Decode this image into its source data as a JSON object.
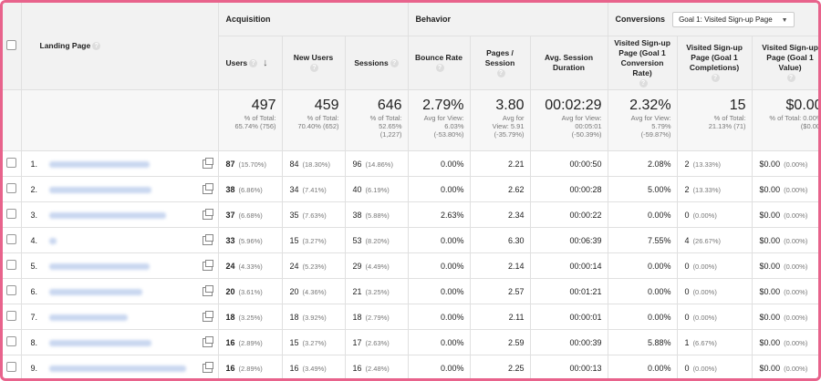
{
  "groups": {
    "acquisition": "Acquisition",
    "behavior": "Behavior",
    "conversions": "Conversions",
    "goal_select": "Goal 1: Visited Sign-up Page"
  },
  "columns": {
    "landing_page": "Landing Page",
    "users": "Users",
    "new_users": "New Users",
    "sessions": "Sessions",
    "bounce_rate": "Bounce Rate",
    "pages_session": "Pages / Session",
    "avg_duration": "Avg. Session Duration",
    "conv_rate": "Visited Sign-up Page (Goal 1 Conversion Rate)",
    "completions": "Visited Sign-up Page (Goal 1 Completions)",
    "value": "Visited Sign-up Page (Goal 1 Value)"
  },
  "totals": {
    "users": {
      "v": "497",
      "s1": "% of Total:",
      "s2": "65.74% (756)"
    },
    "new_users": {
      "v": "459",
      "s1": "% of Total:",
      "s2": "70.40% (652)"
    },
    "sessions": {
      "v": "646",
      "s1": "% of Total:",
      "s2": "52.65%",
      "s3": "(1,227)"
    },
    "bounce_rate": {
      "v": "2.79%",
      "s1": "Avg for View:",
      "s2": "6.03%",
      "s3": "(-53.80%)"
    },
    "pages_session": {
      "v": "3.80",
      "s1": "Avg for",
      "s2": "View: 5.91",
      "s3": "(-35.79%)"
    },
    "avg_duration": {
      "v": "00:02:29",
      "s1": "Avg for View:",
      "s2": "00:05:01",
      "s3": "(-50.39%)"
    },
    "conv_rate": {
      "v": "2.32%",
      "s1": "Avg for View:",
      "s2": "5.79%",
      "s3": "(-59.87%)"
    },
    "completions": {
      "v": "15",
      "s1": "% of Total:",
      "s2": "21.13% (71)"
    },
    "value": {
      "v": "$0.00",
      "s1": "% of Total: 0.00%",
      "s2": "($0.00)"
    }
  },
  "rows": [
    {
      "n": "1.",
      "users": "87",
      "users_p": "(15.70%)",
      "new": "84",
      "new_p": "(18.30%)",
      "sess": "96",
      "sess_p": "(14.86%)",
      "bounce": "0.00%",
      "pps": "2.21",
      "dur": "00:00:50",
      "conv": "2.08%",
      "comp": "2",
      "comp_p": "(13.33%)",
      "val": "$0.00",
      "val_p": "(0.00%)"
    },
    {
      "n": "2.",
      "users": "38",
      "users_p": "(6.86%)",
      "new": "34",
      "new_p": "(7.41%)",
      "sess": "40",
      "sess_p": "(6.19%)",
      "bounce": "0.00%",
      "pps": "2.62",
      "dur": "00:00:28",
      "conv": "5.00%",
      "comp": "2",
      "comp_p": "(13.33%)",
      "val": "$0.00",
      "val_p": "(0.00%)"
    },
    {
      "n": "3.",
      "users": "37",
      "users_p": "(6.68%)",
      "new": "35",
      "new_p": "(7.63%)",
      "sess": "38",
      "sess_p": "(5.88%)",
      "bounce": "2.63%",
      "pps": "2.34",
      "dur": "00:00:22",
      "conv": "0.00%",
      "comp": "0",
      "comp_p": "(0.00%)",
      "val": "$0.00",
      "val_p": "(0.00%)"
    },
    {
      "n": "4.",
      "users": "33",
      "users_p": "(5.96%)",
      "new": "15",
      "new_p": "(3.27%)",
      "sess": "53",
      "sess_p": "(8.20%)",
      "bounce": "0.00%",
      "pps": "6.30",
      "dur": "00:06:39",
      "conv": "7.55%",
      "comp": "4",
      "comp_p": "(26.67%)",
      "val": "$0.00",
      "val_p": "(0.00%)"
    },
    {
      "n": "5.",
      "users": "24",
      "users_p": "(4.33%)",
      "new": "24",
      "new_p": "(5.23%)",
      "sess": "29",
      "sess_p": "(4.49%)",
      "bounce": "0.00%",
      "pps": "2.14",
      "dur": "00:00:14",
      "conv": "0.00%",
      "comp": "0",
      "comp_p": "(0.00%)",
      "val": "$0.00",
      "val_p": "(0.00%)"
    },
    {
      "n": "6.",
      "users": "20",
      "users_p": "(3.61%)",
      "new": "20",
      "new_p": "(4.36%)",
      "sess": "21",
      "sess_p": "(3.25%)",
      "bounce": "0.00%",
      "pps": "2.57",
      "dur": "00:01:21",
      "conv": "0.00%",
      "comp": "0",
      "comp_p": "(0.00%)",
      "val": "$0.00",
      "val_p": "(0.00%)"
    },
    {
      "n": "7.",
      "users": "18",
      "users_p": "(3.25%)",
      "new": "18",
      "new_p": "(3.92%)",
      "sess": "18",
      "sess_p": "(2.79%)",
      "bounce": "0.00%",
      "pps": "2.11",
      "dur": "00:00:01",
      "conv": "0.00%",
      "comp": "0",
      "comp_p": "(0.00%)",
      "val": "$0.00",
      "val_p": "(0.00%)"
    },
    {
      "n": "8.",
      "users": "16",
      "users_p": "(2.89%)",
      "new": "15",
      "new_p": "(3.27%)",
      "sess": "17",
      "sess_p": "(2.63%)",
      "bounce": "0.00%",
      "pps": "2.59",
      "dur": "00:00:39",
      "conv": "5.88%",
      "comp": "1",
      "comp_p": "(6.67%)",
      "val": "$0.00",
      "val_p": "(0.00%)"
    },
    {
      "n": "9.",
      "users": "16",
      "users_p": "(2.89%)",
      "new": "16",
      "new_p": "(3.49%)",
      "sess": "16",
      "sess_p": "(2.48%)",
      "bounce": "0.00%",
      "pps": "2.25",
      "dur": "00:00:13",
      "conv": "0.00%",
      "comp": "0",
      "comp_p": "(0.00%)",
      "val": "$0.00",
      "val_p": "(0.00%)"
    }
  ],
  "colors": {
    "frame": "#e8638c",
    "header_bg": "#f2f2f2",
    "link_blur": "#c9d7f0"
  }
}
